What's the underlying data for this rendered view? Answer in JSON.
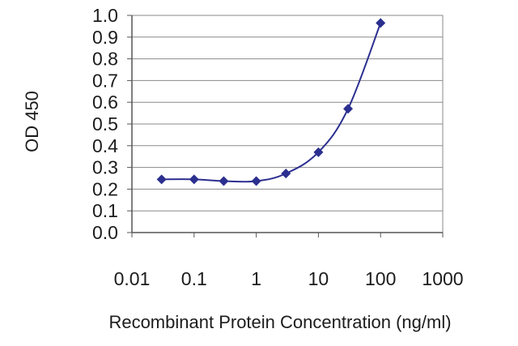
{
  "chart_data": {
    "type": "line",
    "xlabel": "Recombinant Protein Concentration (ng/ml)",
    "ylabel": "OD 450",
    "x_scale": "log",
    "xlim": [
      0.01,
      1000
    ],
    "ylim": [
      0.0,
      1.0
    ],
    "x_ticks": [
      "0.01",
      "0.1",
      "1",
      "10",
      "100",
      "1000"
    ],
    "y_ticks": [
      "0.0",
      "0.1",
      "0.2",
      "0.3",
      "0.4",
      "0.5",
      "0.6",
      "0.7",
      "0.8",
      "0.9",
      "1.0"
    ],
    "grid": "horizontal",
    "legend": "none",
    "series": [
      {
        "color": "#2b2f8f",
        "marker": "diamond",
        "x": [
          0.03,
          0.1,
          0.3,
          1,
          3,
          10,
          30,
          100
        ],
        "y": [
          0.245,
          0.245,
          0.237,
          0.237,
          0.272,
          0.37,
          0.57,
          0.965
        ]
      }
    ]
  }
}
